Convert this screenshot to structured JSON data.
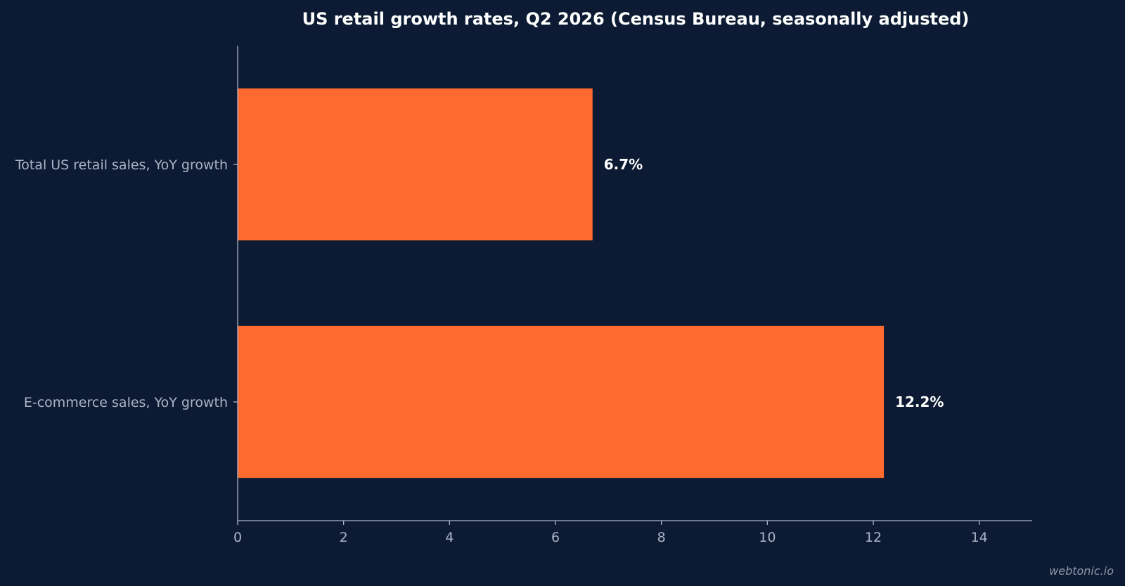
{
  "colors": {
    "background": "#0c1b33",
    "bar": "#ff6b2f",
    "axis": "#aab4c6",
    "text": "#ffffff"
  },
  "chart_data": {
    "type": "bar",
    "orientation": "horizontal",
    "title": "US retail growth rates, Q2 2026 (Census Bureau, seasonally adjusted)",
    "categories": [
      "Total US retail sales, YoY growth",
      "E-commerce sales, YoY growth"
    ],
    "values": [
      6.7,
      12.2
    ],
    "data_labels": [
      "6.7%",
      "12.2%"
    ],
    "xlim": [
      0,
      15
    ],
    "xticks": [
      0,
      2,
      4,
      6,
      8,
      10,
      12,
      14
    ],
    "xtick_labels": [
      "0",
      "2",
      "4",
      "6",
      "8",
      "10",
      "12",
      "14"
    ],
    "xlabel": "",
    "ylabel": "",
    "grid": false,
    "legend": "none"
  },
  "watermark": "webtonic.io"
}
